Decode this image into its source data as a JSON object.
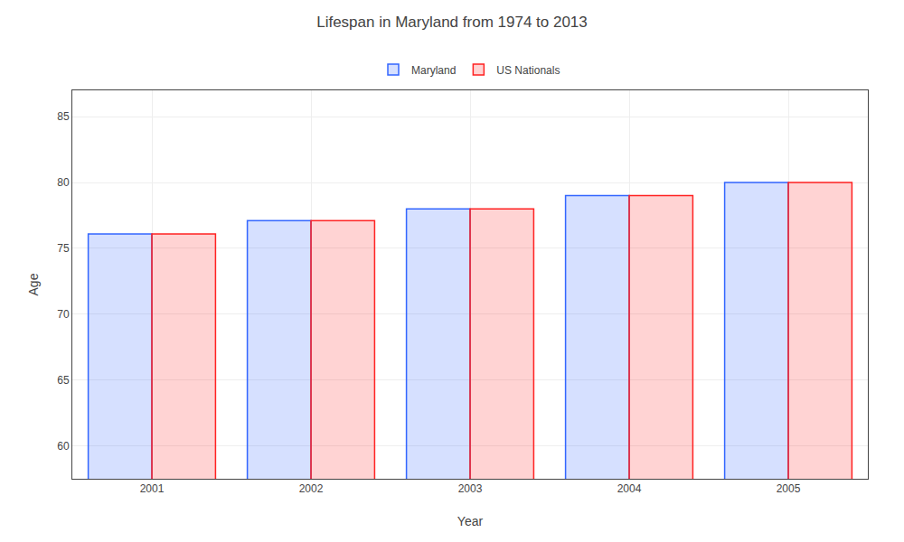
{
  "chart_data": {
    "type": "bar",
    "title": "Lifespan in Maryland from 1974 to 2013",
    "xlabel": "Year",
    "ylabel": "Age",
    "categories": [
      "2001",
      "2002",
      "2003",
      "2004",
      "2005"
    ],
    "series": [
      {
        "name": "Maryland",
        "color": "#3366ff",
        "values": [
          76.1,
          77.1,
          78.0,
          79.0,
          80.0
        ]
      },
      {
        "name": "US Nationals",
        "color": "#ff2222",
        "values": [
          76.1,
          77.1,
          78.0,
          79.0,
          80.0
        ]
      }
    ],
    "ylim": [
      57.5,
      87
    ],
    "yticks": [
      60,
      65,
      70,
      75,
      80,
      85
    ],
    "grid": true,
    "legend": "top"
  }
}
